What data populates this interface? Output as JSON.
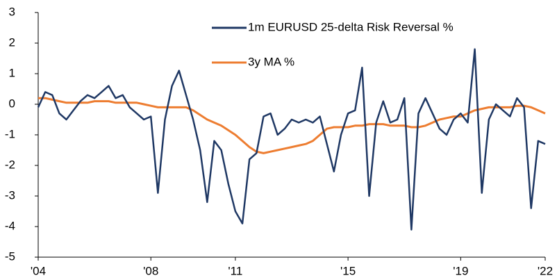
{
  "chart_data": {
    "type": "line",
    "x": [
      2004,
      2004.25,
      2004.5,
      2004.75,
      2005,
      2005.25,
      2005.5,
      2005.75,
      2006,
      2006.25,
      2006.5,
      2006.75,
      2007,
      2007.25,
      2007.5,
      2007.75,
      2008,
      2008.25,
      2008.5,
      2008.75,
      2009,
      2009.25,
      2009.5,
      2009.75,
      2010,
      2010.25,
      2010.5,
      2010.75,
      2011,
      2011.25,
      2011.5,
      2011.75,
      2012,
      2012.25,
      2012.5,
      2012.75,
      2013,
      2013.25,
      2013.5,
      2013.75,
      2014,
      2014.25,
      2014.5,
      2014.75,
      2015,
      2015.25,
      2015.5,
      2015.75,
      2016,
      2016.25,
      2016.5,
      2016.75,
      2017,
      2017.25,
      2017.5,
      2017.75,
      2018,
      2018.25,
      2018.5,
      2018.75,
      2019,
      2019.25,
      2019.5,
      2019.75,
      2020,
      2020.25,
      2020.5,
      2020.75,
      2021,
      2021.25,
      2021.5,
      2021.75,
      2022
    ],
    "series": [
      {
        "name": "1m EURUSD 25-delta Risk Reversal %",
        "color": "#1f3864",
        "values": [
          -0.1,
          0.4,
          0.3,
          -0.3,
          -0.5,
          -0.2,
          0.1,
          0.3,
          0.2,
          0.4,
          0.6,
          0.2,
          0.3,
          -0.1,
          -0.3,
          -0.5,
          -0.4,
          -2.9,
          -0.5,
          0.6,
          1.1,
          0.3,
          -0.5,
          -1.5,
          -3.2,
          -1.2,
          -1.5,
          -2.6,
          -3.5,
          -3.9,
          -1.8,
          -1.6,
          -0.4,
          -0.3,
          -1.0,
          -0.8,
          -0.5,
          -0.6,
          -0.5,
          -0.6,
          -0.4,
          -1.3,
          -2.2,
          -1.0,
          -0.3,
          -0.2,
          1.2,
          -3.0,
          -0.6,
          0.1,
          -0.6,
          -0.5,
          0.2,
          -4.1,
          -0.3,
          0.2,
          -0.3,
          -0.8,
          -1.0,
          -0.5,
          -0.3,
          -0.6,
          1.8,
          -2.9,
          -0.5,
          0.0,
          -0.2,
          -0.4,
          0.2,
          -0.1,
          -3.4,
          -1.2,
          -1.3
        ]
      },
      {
        "name": "3y MA %",
        "color": "#ed7d31",
        "values": [
          0.2,
          0.2,
          0.15,
          0.1,
          0.05,
          0.05,
          0.05,
          0.05,
          0.1,
          0.1,
          0.1,
          0.05,
          0.05,
          0.05,
          0.05,
          0.0,
          -0.05,
          -0.1,
          -0.1,
          -0.1,
          -0.1,
          -0.1,
          -0.2,
          -0.35,
          -0.5,
          -0.6,
          -0.7,
          -0.85,
          -1.0,
          -1.2,
          -1.4,
          -1.55,
          -1.6,
          -1.55,
          -1.5,
          -1.45,
          -1.4,
          -1.35,
          -1.3,
          -1.2,
          -1.0,
          -0.8,
          -0.75,
          -0.75,
          -0.75,
          -0.7,
          -0.7,
          -0.65,
          -0.65,
          -0.65,
          -0.7,
          -0.7,
          -0.7,
          -0.75,
          -0.75,
          -0.7,
          -0.6,
          -0.5,
          -0.45,
          -0.4,
          -0.4,
          -0.3,
          -0.2,
          -0.15,
          -0.1,
          -0.1,
          -0.1,
          -0.1,
          -0.05,
          -0.05,
          -0.1,
          -0.2,
          -0.3
        ]
      }
    ],
    "xlim": [
      2004,
      2022
    ],
    "xticks": [
      {
        "value": 2004,
        "label": "'04"
      },
      {
        "value": 2008,
        "label": "'08"
      },
      {
        "value": 2011,
        "label": "'11"
      },
      {
        "value": 2015,
        "label": "'15"
      },
      {
        "value": 2019,
        "label": "'19"
      },
      {
        "value": 2022,
        "label": "'22"
      }
    ],
    "ylim": [
      -5,
      3
    ],
    "yticks": [
      3,
      2,
      1,
      0,
      -1,
      -2,
      -3,
      -4,
      -5
    ]
  }
}
